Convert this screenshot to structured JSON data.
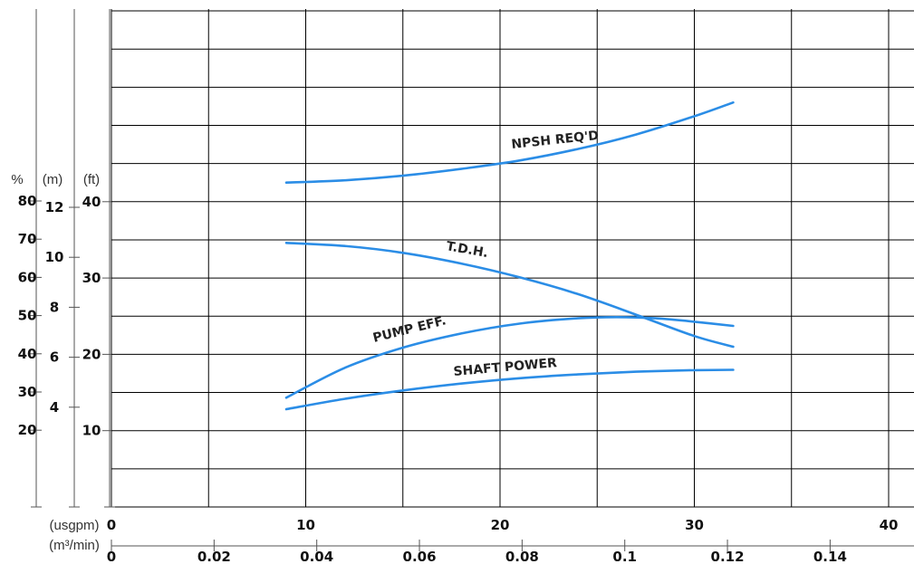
{
  "chart_data": {
    "type": "line",
    "colors": {
      "curve": "#2b8de6",
      "grid": "#000000",
      "axis": "#555555"
    },
    "x_axes": {
      "usgpm": {
        "unit_label": "(usgpm)",
        "range": [
          0,
          41.5
        ],
        "ticks": [
          0,
          10,
          20,
          30,
          40
        ],
        "tick_labels": [
          "0",
          "10",
          "20",
          "30",
          "40"
        ]
      },
      "m3min": {
        "unit_label": "(m³/min)",
        "range": [
          0,
          0.157
        ],
        "ticks": [
          0,
          0.02,
          0.04,
          0.06,
          0.08,
          0.1,
          0.12,
          0.14
        ],
        "tick_labels": [
          "0",
          "0.02",
          "0.04",
          "0.06",
          "0.08",
          "0.1",
          "0.12",
          "0.14"
        ]
      }
    },
    "y_axes": {
      "percent": {
        "unit_label": "%",
        "range": [
          -12.5,
          112.5
        ],
        "ticks": [
          20,
          30,
          40,
          50,
          60,
          70,
          80
        ],
        "tick_labels": [
          "20",
          "30",
          "40",
          "50",
          "60",
          "70",
          "80"
        ]
      },
      "meters": {
        "unit_label": "(m)",
        "range": [
          0,
          19.87
        ],
        "ticks": [
          4,
          6,
          8,
          10,
          12
        ],
        "tick_labels": [
          "4",
          "6",
          "8",
          "10",
          "12"
        ]
      },
      "feet": {
        "unit_label": "(ft)",
        "range": [
          0,
          65
        ],
        "ticks": [
          10,
          20,
          30,
          40
        ],
        "tick_labels": [
          "10",
          "20",
          "30",
          "40"
        ]
      }
    },
    "grid": true,
    "series": [
      {
        "name": "NPSH REQ'D",
        "axis": "feet",
        "x": [
          9,
          12,
          15,
          18,
          21,
          24,
          27,
          30,
          32
        ],
        "y": [
          42.5,
          42.8,
          43.4,
          44.3,
          45.4,
          46.9,
          48.8,
          51.2,
          53.0
        ]
      },
      {
        "name": "T.D.H.",
        "axis": "feet",
        "x": [
          9,
          12,
          15,
          18,
          21,
          24,
          27,
          30,
          32
        ],
        "y": [
          34.6,
          34.2,
          33.3,
          31.9,
          30.1,
          27.9,
          25.2,
          22.4,
          21.0
        ]
      },
      {
        "name": "PUMP EFF.",
        "axis": "percent",
        "x": [
          9,
          12,
          15,
          18,
          21,
          24,
          26,
          28,
          30,
          32
        ],
        "y": [
          28.5,
          36.3,
          41.6,
          45.3,
          47.9,
          49.3,
          49.6,
          49.3,
          48.4,
          47.3
        ]
      },
      {
        "name": "SHAFT POWER",
        "axis": "percent",
        "x": [
          9,
          12,
          15,
          18,
          21,
          24,
          27,
          30,
          32
        ],
        "y": [
          25.5,
          28.2,
          30.4,
          32.2,
          33.6,
          34.6,
          35.3,
          35.7,
          35.8
        ]
      }
    ]
  }
}
